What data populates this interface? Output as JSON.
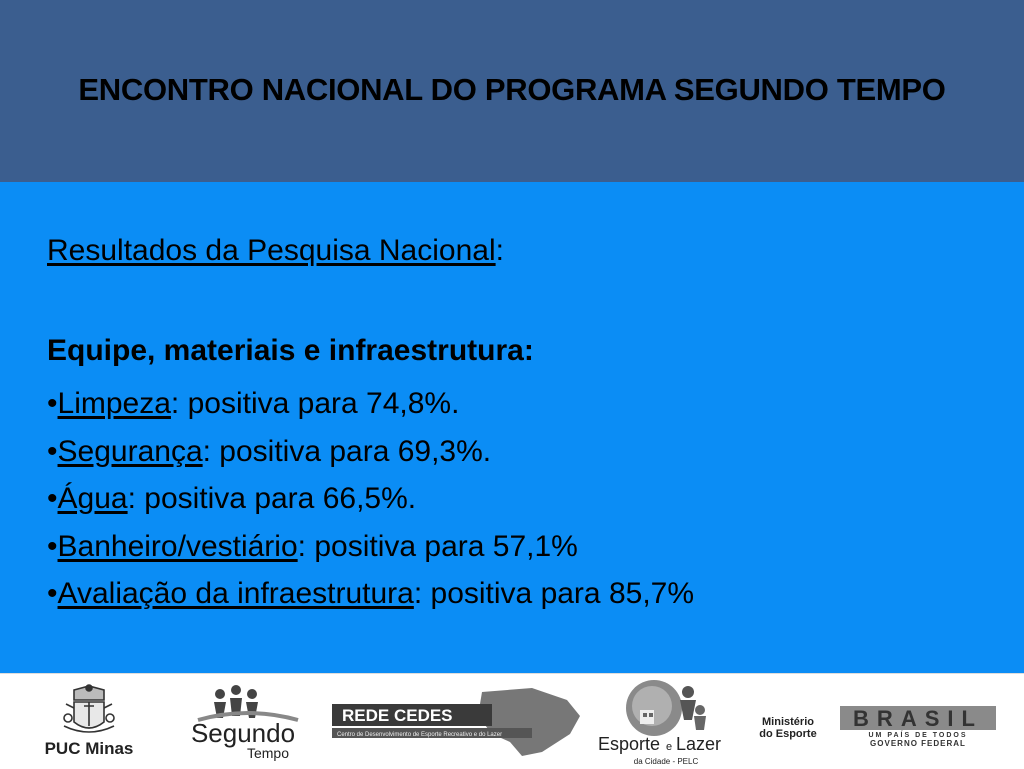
{
  "header": {
    "title": "ENCONTRO NACIONAL DO PROGRAMA SEGUNDO TEMPO"
  },
  "content": {
    "subtitle": "Resultados da Pesquisa Nacional",
    "subtitle_suffix": ":",
    "section_heading": "Equipe, materiais e infraestrutura:",
    "bullet": "•",
    "items": [
      {
        "label": "Limpeza",
        "text": ": positiva para 74,8%."
      },
      {
        "label": "Segurança",
        "text": ": positiva para 69,3%."
      },
      {
        "label": "Água",
        "text": ": positiva para 66,5%."
      },
      {
        "label": "Banheiro/vestiário",
        "text": ": positiva para 57,1%"
      },
      {
        "label": "Avaliação da infraestrutura",
        "text": ": positiva para 85,7%"
      }
    ]
  },
  "footer": {
    "logos": {
      "puc": {
        "name": "PUC Minas"
      },
      "segundo": {
        "line1": "Segundo",
        "line2": "Tempo"
      },
      "cedes": {
        "name": "REDE CEDES",
        "tagline": "Centro de Desenvolvimento de Esporte Recreativo e do Lazer"
      },
      "esporte": {
        "line1": "Esporte",
        "conj": "e",
        "line2": "Lazer",
        "line3": "da Cidade - PELC"
      },
      "ministerio": {
        "line1": "Ministério",
        "line2": "do Esporte"
      },
      "brasil": {
        "name": "BRASIL",
        "line1": "UM PAÍS DE TODOS",
        "line2": "GOVERNO FEDERAL"
      }
    }
  }
}
